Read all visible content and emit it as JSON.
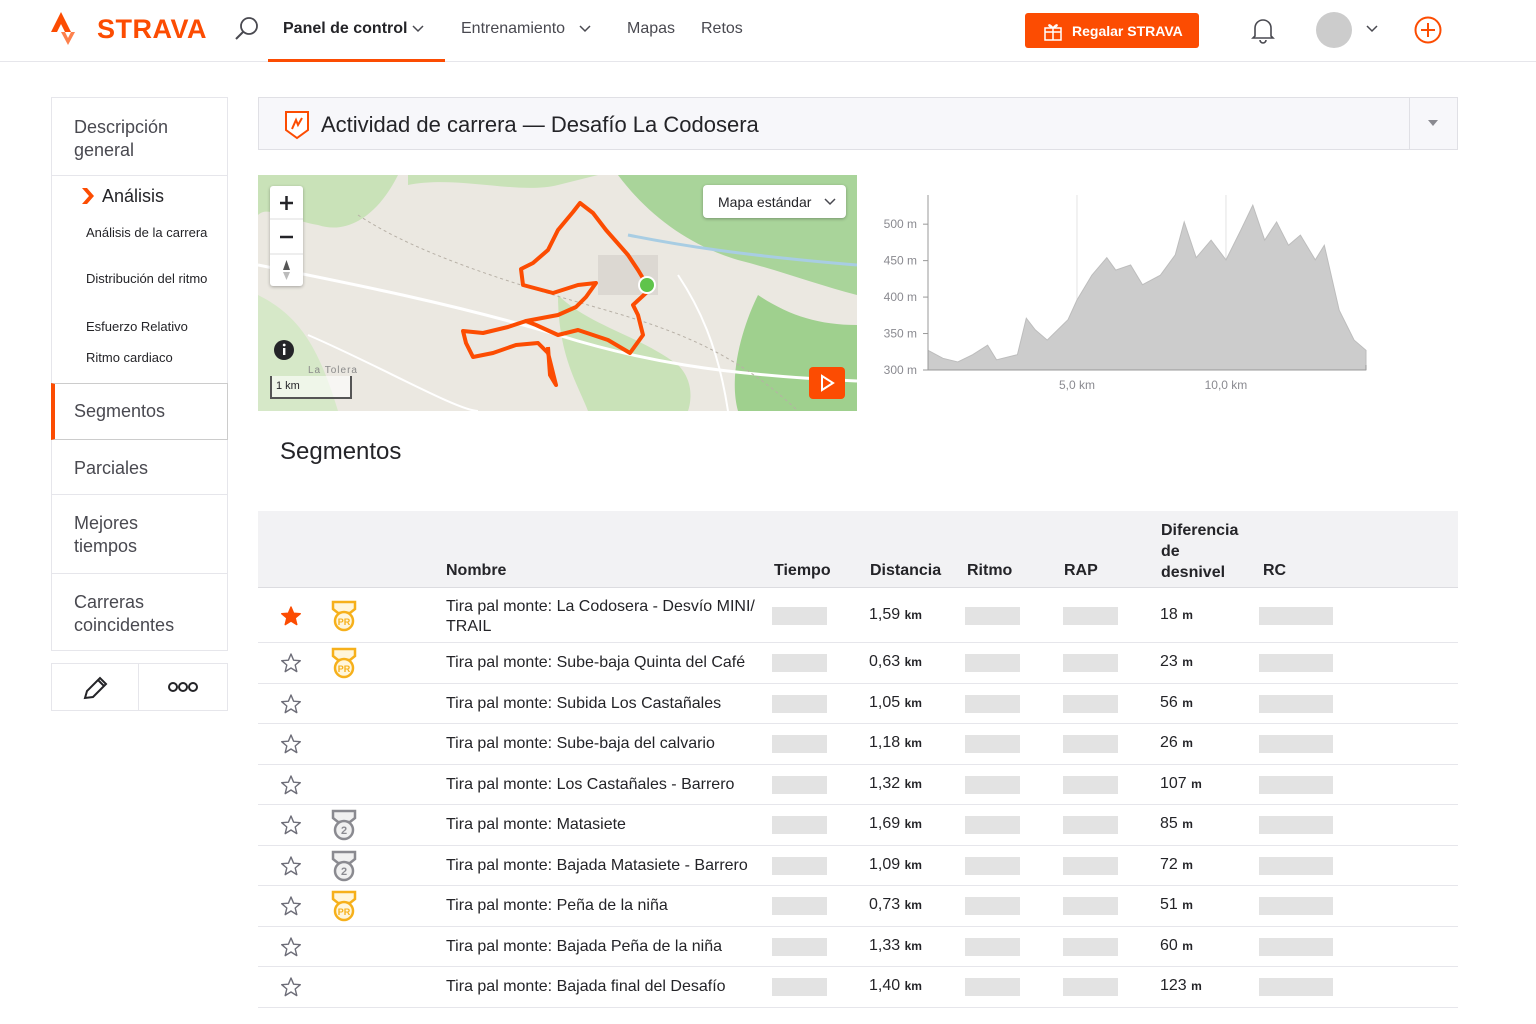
{
  "nav": {
    "brand": "STRAVA",
    "items": [
      "Panel de control",
      "Entrenamiento",
      "Mapas",
      "Retos"
    ],
    "gift_button": "Regalar STRAVA"
  },
  "sidebar": {
    "overview": "Descripción general",
    "analysis": {
      "title": "Análisis",
      "items": [
        "Análisis de la carrera",
        "Distribución del ritmo",
        "Esfuerzo Relativo",
        "Ritmo cardiaco"
      ]
    },
    "items": [
      "Segmentos",
      "Parciales",
      "Mejores tiempos",
      "Carreras coincidentes"
    ],
    "active": "Segmentos"
  },
  "activity": {
    "title": "Actividad de carrera — Desafío La Codosera"
  },
  "map": {
    "type_button": "Mapa estándar",
    "place": "La Tolera",
    "scale": "1 km"
  },
  "elevation_chart": {
    "type": "area",
    "color": "#cccccc",
    "x": [
      0,
      0.5,
      1.0,
      1.5,
      2.0,
      2.3,
      3.0,
      3.3,
      3.6,
      4.0,
      4.7,
      5.0,
      5.5,
      6.0,
      6.3,
      6.8,
      7.2,
      7.8,
      8.3,
      8.6,
      9.0,
      9.5,
      10.0,
      10.5,
      10.9,
      11.3,
      11.7,
      12.1,
      12.5,
      13.0,
      13.3,
      13.8,
      14.3,
      14.7
    ],
    "values": [
      327,
      316,
      311,
      321,
      334,
      314,
      321,
      371,
      355,
      341,
      369,
      396,
      430,
      454,
      437,
      444,
      417,
      430,
      458,
      503,
      454,
      478,
      451,
      492,
      526,
      478,
      503,
      471,
      485,
      451,
      471,
      382,
      341,
      327
    ],
    "xlim": [
      0,
      14.7
    ],
    "ylim": [
      300,
      540
    ],
    "xticks": [
      {
        "value": 5,
        "label": "5,0 km"
      },
      {
        "value": 10,
        "label": "10,0 km"
      }
    ],
    "yticks": [
      {
        "value": 300,
        "label": "300 m"
      },
      {
        "value": 350,
        "label": "350 m"
      },
      {
        "value": 400,
        "label": "400 m"
      },
      {
        "value": 450,
        "label": "450 m"
      },
      {
        "value": 500,
        "label": "500 m"
      }
    ]
  },
  "segments": {
    "title": "Segmentos",
    "headers": [
      "Nombre",
      "Tiempo",
      "Distancia",
      "Ritmo",
      "RAP",
      "Diferencia de desnivel",
      "RC"
    ],
    "rows": [
      {
        "starred": true,
        "badge": "PR",
        "name": "Tira pal monte: La Codosera - Desvío MINI/ TRAIL",
        "distance": "1,59",
        "distance_unit": "km",
        "elevation": "18",
        "elevation_unit": "m"
      },
      {
        "starred": false,
        "badge": "PR",
        "name": "Tira pal monte: Sube-baja Quinta del Café",
        "distance": "0,63",
        "distance_unit": "km",
        "elevation": "23",
        "elevation_unit": "m"
      },
      {
        "starred": false,
        "name": "Tira pal monte: Subida Los Castañales",
        "distance": "1,05",
        "distance_unit": "km",
        "elevation": "56",
        "elevation_unit": "m"
      },
      {
        "starred": false,
        "name": "Tira pal monte: Sube-baja del calvario",
        "distance": "1,18",
        "distance_unit": "km",
        "elevation": "26",
        "elevation_unit": "m"
      },
      {
        "starred": false,
        "name": "Tira pal monte: Los Castañales - Barrero",
        "distance": "1,32",
        "distance_unit": "km",
        "elevation": "107",
        "elevation_unit": "m"
      },
      {
        "starred": false,
        "badge": "2",
        "name": "Tira pal monte: Matasiete",
        "distance": "1,69",
        "distance_unit": "km",
        "elevation": "85",
        "elevation_unit": "m"
      },
      {
        "starred": false,
        "badge": "2",
        "name": "Tira pal monte: Bajada Matasiete - Barrero",
        "distance": "1,09",
        "distance_unit": "km",
        "elevation": "72",
        "elevation_unit": "m"
      },
      {
        "starred": false,
        "badge": "PR",
        "name": "Tira pal monte: Peña de la niña",
        "distance": "0,73",
        "distance_unit": "km",
        "elevation": "51",
        "elevation_unit": "m"
      },
      {
        "starred": false,
        "name": "Tira pal monte: Bajada Peña de la niña",
        "distance": "1,33",
        "distance_unit": "km",
        "elevation": "60",
        "elevation_unit": "m"
      },
      {
        "starred": false,
        "name": "Tira pal monte: Bajada final del Desafío",
        "distance": "1,40",
        "distance_unit": "km",
        "elevation": "123",
        "elevation_unit": "m"
      }
    ]
  }
}
